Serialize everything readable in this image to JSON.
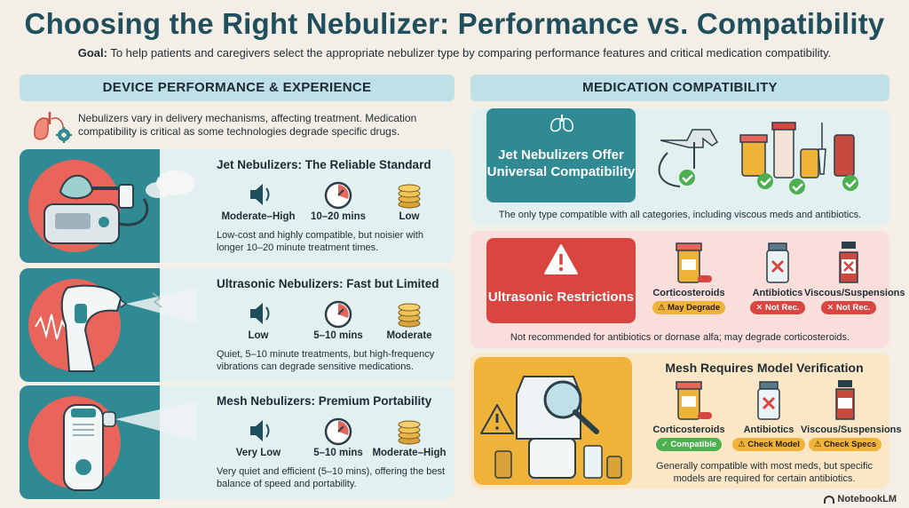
{
  "header": {
    "title": "Choosing the Right Nebulizer: Performance vs. Compatibility",
    "goal_label": "Goal:",
    "goal_text": " To help patients and caregivers select the appropriate nebulizer type by comparing performance features and critical medication compatibility."
  },
  "left": {
    "heading": "DEVICE PERFORMANCE & EXPERIENCE",
    "intro": "Nebulizers vary in delivery mechanisms, affecting treatment. Medication compatibility is critical as some technologies degrade specific drugs.",
    "cards": [
      {
        "title": "Jet Nebulizers: The Reliable Standard",
        "noise": "Moderate–High",
        "time": "10–20 mins",
        "cost": "Low",
        "desc": "Low-cost and highly compatible, but noisier with longer 10–20 minute treatment times."
      },
      {
        "title": "Ultrasonic Nebulizers: Fast but Limited",
        "noise": "Low",
        "time": "5–10 mins",
        "cost": "Moderate",
        "desc": "Quiet, 5–10 minute treatments, but high-frequency vibrations can degrade sensitive medications."
      },
      {
        "title": "Mesh Nebulizers: Premium Portability",
        "noise": "Very Low",
        "time": "5–10 mins",
        "cost": "Moderate–High",
        "desc": "Very quiet and efficient (5–10 mins), offering the best balance of speed and portability."
      }
    ]
  },
  "right": {
    "heading": "MEDICATION COMPATIBILITY",
    "jet": {
      "title": "Jet Nebulizers Offer Universal Compatibility",
      "foot": "The only type compatible with all categories, including viscous meds and antibiotics."
    },
    "ultrasonic": {
      "title": "Ultrasonic Restrictions",
      "meds": [
        {
          "label": "Corticosteroids",
          "badge": "⚠ May Degrade"
        },
        {
          "label": "Antibiotics",
          "badge": "✕ Not Rec."
        },
        {
          "label": "Viscous/Suspensions",
          "badge": "✕ Not Rec."
        }
      ],
      "foot": "Not recommended for antibiotics or dornase alfa; may degrade corticosteroids."
    },
    "mesh": {
      "title": "Mesh Requires Model Verification",
      "meds": [
        {
          "label": "Corticosteroids",
          "badge": "✓ Compatible"
        },
        {
          "label": "Antibiotics",
          "badge": "⚠ Check Model"
        },
        {
          "label": "Viscous/Suspensions",
          "badge": "⚠ Check Specs"
        }
      ],
      "foot": "Generally compatible with most meds, but specific models are required for certain antibiotics."
    }
  },
  "footer": {
    "brand": "NotebookLM"
  },
  "colors": {
    "teal": "#2f8a93",
    "coral": "#e9645a",
    "red": "#d9463f",
    "gold": "#f0b33a",
    "green": "#4caf50"
  }
}
